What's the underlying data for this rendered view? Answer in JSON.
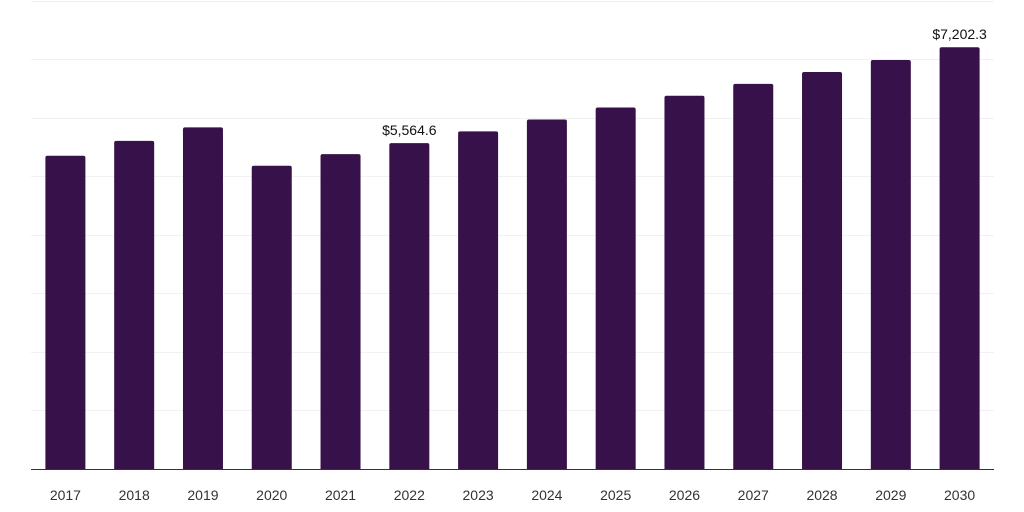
{
  "chart_data": {
    "type": "bar",
    "title": "",
    "xlabel": "",
    "ylabel": "",
    "categories": [
      "2017",
      "2018",
      "2019",
      "2020",
      "2021",
      "2022",
      "2023",
      "2024",
      "2025",
      "2026",
      "2027",
      "2028",
      "2029",
      "2030"
    ],
    "values": [
      5348,
      5602,
      5833,
      5179,
      5377,
      5564.6,
      5766,
      5969,
      6172,
      6374,
      6577,
      6780,
      6983,
      7202.3
    ],
    "data_labels": {
      "5": "$5,564.6",
      "13": "$7,202.3"
    },
    "ylim": [
      0,
      8000
    ],
    "grid": true,
    "gridline_step": 1000,
    "bar_color": "#37114a",
    "grid_color": "#f1f1f1",
    "axis_color": "#333333"
  }
}
